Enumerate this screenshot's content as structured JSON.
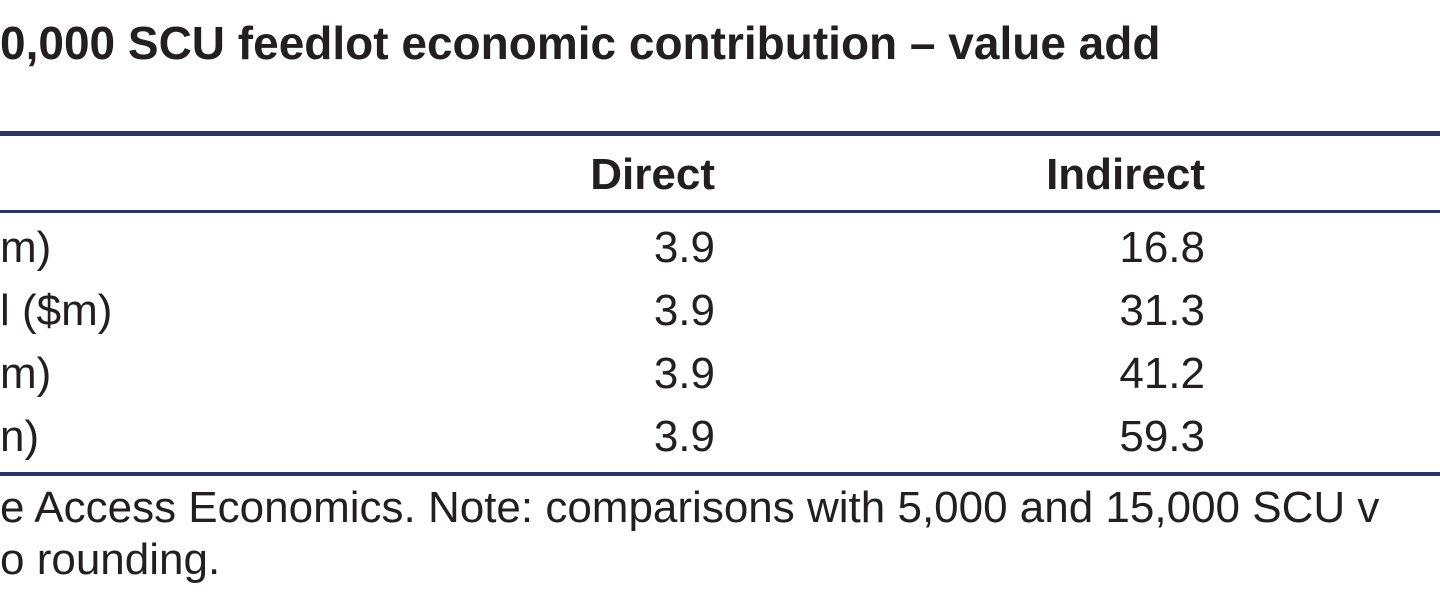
{
  "title": "0,000 SCU feedlot economic contribution – value add",
  "table": {
    "columns": [
      "Direct",
      "Indirect"
    ],
    "rows": [
      [
        "m)",
        "3.9",
        "16.8"
      ],
      [
        "l ($m)",
        "3.9",
        "31.3"
      ],
      [
        "m)",
        "3.9",
        "41.2"
      ],
      [
        "n)",
        "3.9",
        "59.3"
      ]
    ]
  },
  "notes": [
    "e Access Economics. Note: comparisons with 5,000 and 15,000 SCU v",
    "o rounding."
  ]
}
